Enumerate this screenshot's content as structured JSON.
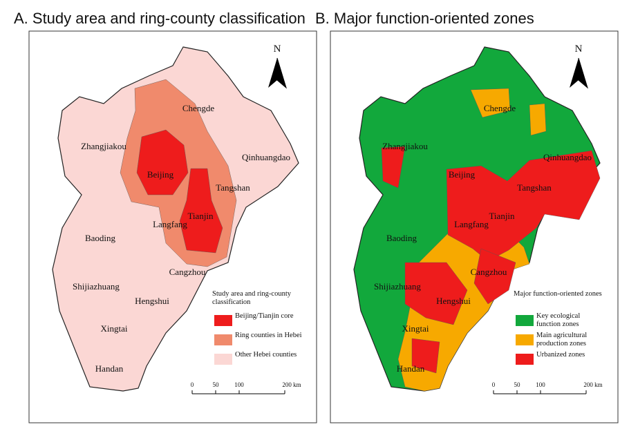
{
  "panels": [
    {
      "title": "A. Study area and ring-county classification",
      "north": "N",
      "cities": [
        "Chengde",
        "Zhangjiakou",
        "Qinhuangdao",
        "Beijing",
        "Tangshan",
        "Tianjin",
        "Langfang",
        "Baoding",
        "Cangzhou",
        "Shijiazhuang",
        "Hengshui",
        "Xingtai",
        "Handan"
      ],
      "legend": {
        "title": "Study area and ring-county classification",
        "items": [
          {
            "label": "Beijing/Tianjin core",
            "color": "#ee1c1c"
          },
          {
            "label": "Ring counties in Hebei",
            "color": "#f08a6c"
          },
          {
            "label": "Other Hebei counties",
            "color": "#fbd7d4"
          }
        ]
      },
      "scale": [
        "0",
        "50",
        "100",
        "200 km"
      ]
    },
    {
      "title": "B. Major function-oriented zones",
      "north": "N",
      "cities": [
        "Chengde",
        "Zhangjiakou",
        "Qinhuangdao",
        "Beijing",
        "Tangshan",
        "Tianjin",
        "Langfang",
        "Baoding",
        "Cangzhou",
        "Shijiazhuang",
        "Hengshui",
        "Xingtai",
        "Handan"
      ],
      "legend": {
        "title": "Major function-oriented zones",
        "items": [
          {
            "label": "Key ecological function zones",
            "color": "#12a83c"
          },
          {
            "label": "Main agricultural production zones",
            "color": "#f7a900"
          },
          {
            "label": "Urbanized zones",
            "color": "#ee1c1c"
          }
        ]
      },
      "scale": [
        "0",
        "50",
        "100",
        "200 km"
      ]
    }
  ]
}
